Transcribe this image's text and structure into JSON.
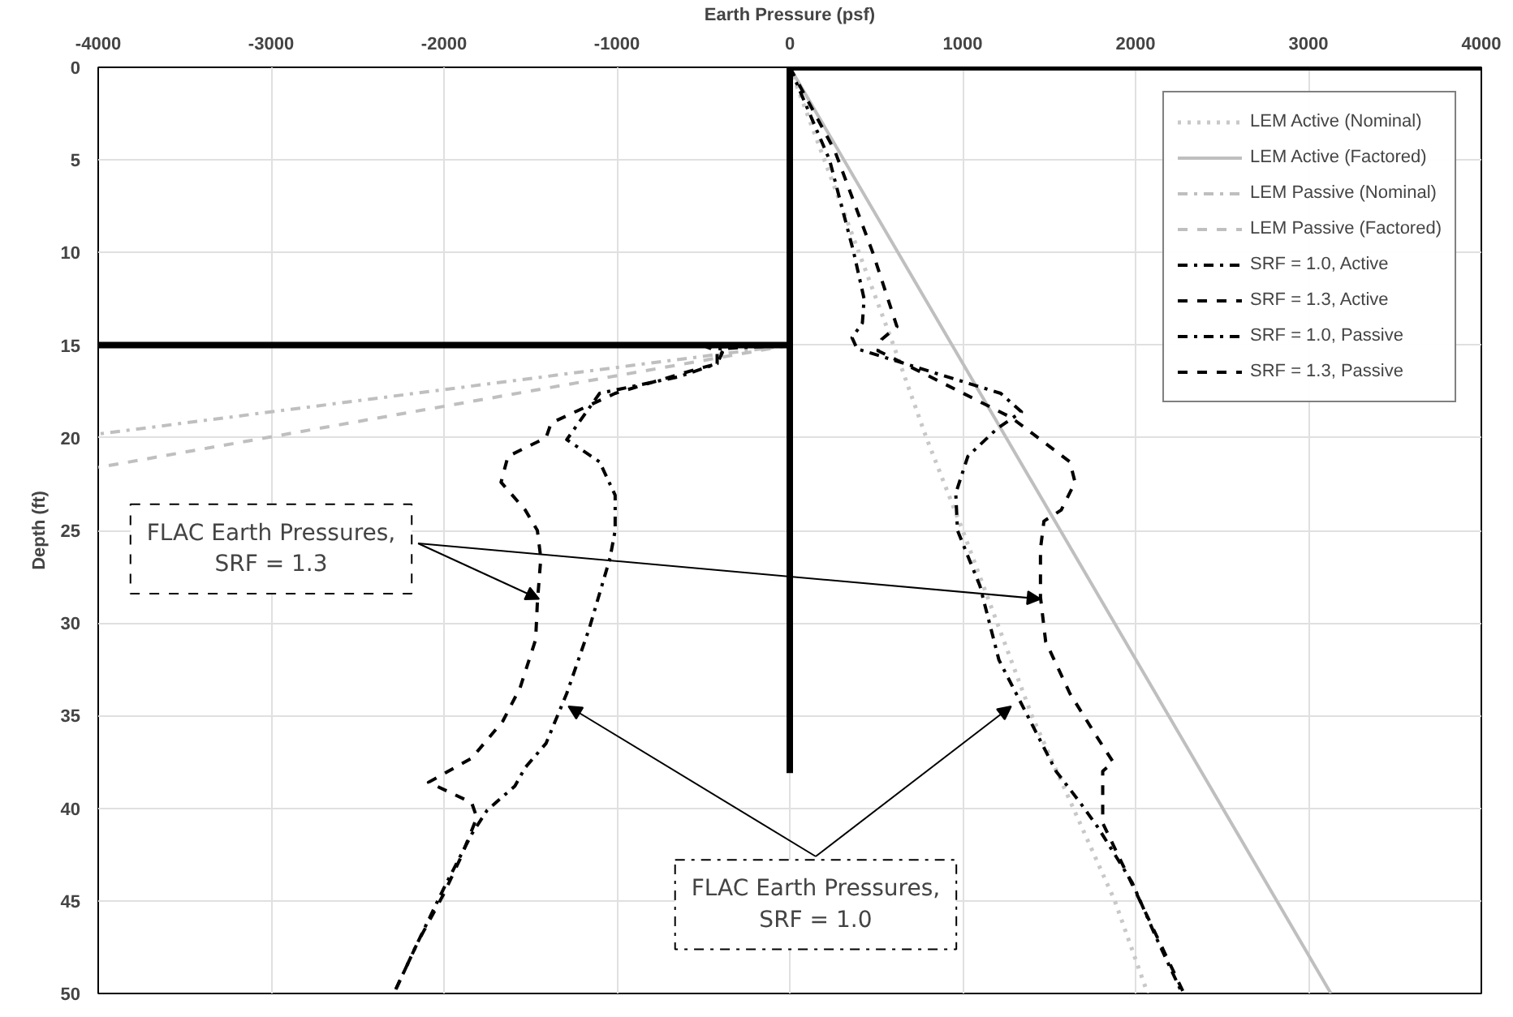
{
  "chart_data": {
    "type": "line",
    "xlabel": "Earth Pressure (psf)",
    "ylabel": "Depth (ft)",
    "xlim": [
      -4000,
      4000
    ],
    "xticks": [
      -4000,
      -3000,
      -2000,
      -1000,
      0,
      1000,
      2000,
      3000,
      4000
    ],
    "ylim": [
      50,
      0
    ],
    "yticks": [
      0,
      5,
      10,
      15,
      20,
      25,
      30,
      35,
      40,
      45,
      50
    ],
    "grid": true,
    "legend": "top right",
    "series": [
      {
        "name": "LEM Active (Nominal)",
        "color": "#c8c8c8",
        "line_style": "dotted",
        "x": [
          0,
          600,
          790,
          1000,
          1200,
          1400,
          1640,
          1880,
          2070
        ],
        "values": [
          0,
          15,
          20,
          25,
          30,
          35,
          40,
          45,
          50
        ]
      },
      {
        "name": "LEM Active (Factored)",
        "color": "#bfbfbf",
        "line_style": "solid",
        "x": [
          0,
          3130
        ],
        "values": [
          0,
          50
        ]
      },
      {
        "name": "LEM Passive (Nominal)",
        "color": "#bfbfbf",
        "line_style": "dashdot",
        "x": [
          0,
          -4000
        ],
        "values": [
          15,
          19.8
        ]
      },
      {
        "name": "LEM Passive (Factored)",
        "color": "#bfbfbf",
        "line_style": "dashed",
        "x": [
          0,
          -4000
        ],
        "values": [
          15,
          21.6
        ]
      },
      {
        "name": "SRF = 1.0, Active",
        "color": "#000000",
        "line_style": "dashdot",
        "x": [
          0,
          230,
          370,
          430,
          420,
          360,
          390,
          1220,
          1340,
          1200,
          1030,
          960,
          970,
          1100,
          1210,
          1430,
          1540,
          1680,
          1780,
          1980,
          2120,
          2270
        ],
        "values": [
          0,
          5,
          10,
          12.5,
          13.8,
          14.6,
          15.2,
          17.6,
          18.6,
          19.5,
          21,
          23,
          25,
          28,
          32,
          36,
          38,
          39.7,
          41,
          44,
          47,
          50
        ]
      },
      {
        "name": "SRF = 1.3, Active",
        "color": "#000000",
        "line_style": "dashed",
        "x": [
          0,
          260,
          480,
          620,
          530,
          510,
          790,
          1280,
          1620,
          1650,
          1570,
          1470,
          1450,
          1450,
          1480,
          1620,
          1780,
          1870,
          1810,
          1810,
          1810,
          1990,
          2280
        ],
        "values": [
          0,
          4.5,
          10,
          14,
          14.7,
          15.3,
          16.6,
          18.9,
          21.3,
          22.4,
          23.9,
          24.5,
          26,
          28.6,
          31,
          33.8,
          36.2,
          37.5,
          38,
          39.1,
          40.8,
          44.3,
          50
        ]
      },
      {
        "name": "SRF = 1.0, Passive",
        "color": "#000000",
        "line_style": "dashdot",
        "x": [
          0,
          -420,
          -420,
          -640,
          -1100,
          -1290,
          -1100,
          -1010,
          -1010,
          -1040,
          -1160,
          -1290,
          -1410,
          -1530,
          -1590,
          -1750,
          -1840,
          -2000,
          -2150,
          -2290
        ],
        "values": [
          15,
          15.2,
          16,
          16.7,
          17.6,
          20.1,
          21.3,
          23.1,
          25,
          26.5,
          30.3,
          33.8,
          36.5,
          37.8,
          38.8,
          40.1,
          41.4,
          44.3,
          47.2,
          50
        ]
      },
      {
        "name": "SRF = 1.3, Passive",
        "color": "#000000",
        "line_style": "dashed",
        "x": [
          0,
          -480,
          -390,
          -420,
          -540,
          -1010,
          -1380,
          -1410,
          -1630,
          -1670,
          -1530,
          -1460,
          -1440,
          -1460,
          -1470,
          -1560,
          -1660,
          -1840,
          -2090,
          -1840,
          -1810,
          -1900,
          -2000,
          -2150,
          -2290
        ],
        "values": [
          15,
          15.1,
          15.4,
          16,
          16.3,
          17.6,
          19.2,
          20,
          21,
          22.4,
          23.9,
          25,
          26.5,
          28.9,
          30.9,
          33.5,
          35.3,
          37.3,
          38.6,
          39.7,
          40.5,
          42.6,
          44.6,
          47.2,
          50
        ]
      },
      {
        "color": "#000000",
        "line_style": "solid",
        "x": [
          0,
          0
        ],
        "values": [
          0,
          38.1
        ]
      },
      {
        "color": "#000000",
        "line_style": "solid",
        "x": [
          -4000,
          0
        ],
        "values": [
          15,
          15
        ]
      },
      {
        "color": "#000000",
        "line_style": "solid",
        "x": [
          0,
          4000
        ],
        "values": [
          0,
          0
        ]
      }
    ],
    "annotations": [
      {
        "text": "FLAC Earth Pressures,\nSRF = 1.3",
        "x": -1450,
        "y": 28.7
      },
      {
        "text": "FLAC Earth Pressures,\nSRF = 1.0",
        "x": -1280,
        "y": 34.5
      }
    ]
  }
}
